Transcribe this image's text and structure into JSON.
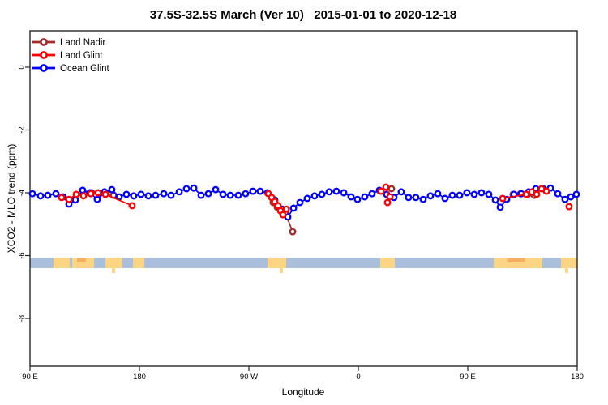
{
  "window": {
    "background": "#ffffff"
  },
  "chart_data": {
    "type": "line",
    "title": "37.5S-32.5S March (Ver 10)   2015-01-01 to 2020-12-18",
    "xlabel": "Longitude",
    "ylabel": "XCO2 - MLO trend (ppm)",
    "xlim_axis_degrees": [
      90,
      540
    ],
    "ylim": [
      -9.2,
      1.2
    ],
    "grid": false,
    "legend_position": "top-left",
    "x_ticks": [
      {
        "lon": 90,
        "label": "90 E"
      },
      {
        "lon": 180,
        "label": "180"
      },
      {
        "lon": 270,
        "label": "90 W"
      },
      {
        "lon": 360,
        "label": "0"
      },
      {
        "lon": 450,
        "label": "90 E"
      },
      {
        "lon": 540,
        "label": "180"
      }
    ],
    "y_ticks": [
      {
        "value": 0,
        "label": "0"
      },
      {
        "value": -2,
        "label": "-2"
      },
      {
        "value": -4,
        "label": "-4"
      },
      {
        "value": -6,
        "label": "-6"
      },
      {
        "value": -8,
        "label": "-8"
      }
    ],
    "series": [
      {
        "name": "Land Nadir",
        "color": "#A52A2A",
        "marker": "open-circle",
        "segments": [
          [
            [
              134.7,
              -4.03
            ],
            [
              140.7,
              -4.0
            ],
            [
              146.7,
              -4.05
            ],
            [
              152.7,
              -4.03
            ],
            [
              158.7,
              -4.08
            ]
          ],
          [
            [
              290.0,
              -4.31
            ],
            [
              293.3,
              -4.46
            ],
            [
              296.7,
              -4.59
            ],
            [
              300.0,
              -4.65
            ],
            [
              306.0,
              -5.24
            ]
          ],
          [
            [
              387.3,
              -3.87
            ]
          ],
          [
            [
              487.3,
              -4.05
            ],
            [
              493.3,
              -4.03
            ],
            [
              499.3,
              -4.05
            ],
            [
              504.7,
              -4.08
            ]
          ]
        ]
      },
      {
        "name": "Land Glint",
        "color": "#FF0000",
        "marker": "open-circle",
        "segments": [
          [
            [
              116.0,
              -4.15
            ],
            [
              122.0,
              -4.21
            ],
            [
              128.0,
              -4.05
            ],
            [
              134.0,
              -4.1
            ],
            [
              140.0,
              -4.03
            ],
            [
              146.0,
              -4.0
            ],
            [
              152.0,
              -4.05
            ],
            [
              174.0,
              -4.41
            ]
          ],
          [
            [
              286.0,
              -4.03
            ],
            [
              288.7,
              -4.15
            ],
            [
              291.3,
              -4.28
            ],
            [
              294.0,
              -4.41
            ],
            [
              296.0,
              -4.57
            ],
            [
              298.0,
              -4.7
            ],
            [
              300.7,
              -4.52
            ]
          ],
          [
            [
              378.7,
              -3.95
            ],
            [
              382.7,
              -3.82
            ],
            [
              386.0,
              -4.13
            ],
            [
              384.0,
              -4.31
            ]
          ],
          [
            [
              478.7,
              -4.18
            ],
            [
              498.0,
              -4.05
            ],
            [
              502.7,
              -3.97
            ],
            [
              506.7,
              -4.05
            ],
            [
              510.7,
              -3.87
            ],
            [
              514.7,
              -3.95
            ]
          ],
          [
            [
              533.3,
              -4.44
            ]
          ]
        ]
      },
      {
        "name": "Ocean Glint",
        "color": "#0000FF",
        "marker": "open-circle",
        "segments": [
          [
            [
              92.0,
              -4.03
            ],
            [
              98.7,
              -4.1
            ],
            [
              104.7,
              -4.08
            ],
            [
              111.3,
              -4.03
            ],
            [
              117.3,
              -4.13
            ],
            [
              122.0,
              -4.36
            ],
            [
              127.3,
              -4.23
            ],
            [
              133.3,
              -3.92
            ],
            [
              139.3,
              -4.0
            ],
            [
              145.3,
              -4.21
            ],
            [
              151.3,
              -3.97
            ],
            [
              157.3,
              -3.9
            ],
            [
              163.3,
              -4.13
            ],
            [
              169.3,
              -4.05
            ],
            [
              175.3,
              -4.1
            ],
            [
              181.3,
              -4.05
            ],
            [
              187.3,
              -4.1
            ],
            [
              193.3,
              -4.08
            ],
            [
              200.0,
              -4.03
            ],
            [
              206.0,
              -4.08
            ],
            [
              212.7,
              -3.97
            ],
            [
              218.7,
              -3.87
            ],
            [
              224.7,
              -3.85
            ],
            [
              230.7,
              -4.08
            ],
            [
              236.7,
              -4.03
            ],
            [
              242.7,
              -3.9
            ],
            [
              248.7,
              -4.05
            ],
            [
              254.7,
              -4.08
            ],
            [
              261.3,
              -4.08
            ],
            [
              267.3,
              -4.03
            ],
            [
              273.3,
              -3.95
            ],
            [
              279.3,
              -3.95
            ],
            [
              285.3,
              -4.0
            ],
            [
              291.3,
              -4.23
            ],
            [
              297.3,
              -4.52
            ],
            [
              302.0,
              -4.77
            ],
            [
              306.7,
              -4.49
            ],
            [
              312.0,
              -4.31
            ],
            [
              318.0,
              -4.18
            ],
            [
              324.0,
              -4.1
            ],
            [
              330.0,
              -4.05
            ],
            [
              336.0,
              -3.97
            ],
            [
              342.0,
              -3.95
            ],
            [
              348.0,
              -4.0
            ],
            [
              354.0,
              -4.13
            ],
            [
              359.3,
              -4.21
            ],
            [
              365.3,
              -4.13
            ],
            [
              371.3,
              -4.03
            ],
            [
              377.3,
              -3.92
            ],
            [
              383.3,
              -4.05
            ],
            [
              389.3,
              -4.15
            ],
            [
              395.3,
              -3.97
            ],
            [
              401.3,
              -4.15
            ],
            [
              407.3,
              -4.15
            ],
            [
              413.3,
              -4.21
            ],
            [
              419.3,
              -4.1
            ],
            [
              425.3,
              -4.03
            ],
            [
              431.3,
              -4.18
            ],
            [
              437.3,
              -4.08
            ],
            [
              443.3,
              -4.08
            ],
            [
              449.3,
              -4.0
            ],
            [
              455.3,
              -4.05
            ],
            [
              461.3,
              -4.0
            ],
            [
              467.3,
              -4.05
            ],
            [
              472.7,
              -4.23
            ],
            [
              476.7,
              -4.46
            ],
            [
              482.0,
              -4.21
            ],
            [
              488.0,
              -4.05
            ],
            [
              494.0,
              -4.03
            ],
            [
              500.0,
              -3.97
            ],
            [
              506.0,
              -3.87
            ],
            [
              512.0,
              -3.87
            ],
            [
              518.0,
              -3.85
            ],
            [
              524.0,
              -4.03
            ],
            [
              530.0,
              -4.21
            ],
            [
              534.7,
              -4.13
            ],
            [
              539.3,
              -4.05
            ]
          ]
        ]
      }
    ],
    "map_band": {
      "description": "land/ocean strip for latitude band 37.5S-32.5S drawn near y = -6",
      "ocean_color": "#A9BFDC",
      "land_color": "#FBD583",
      "dense_color": "#F2A85A",
      "lon_range": [
        90,
        540
      ],
      "land_patches": [
        {
          "start": 109.3,
          "end": 122.7
        },
        {
          "start": 124.7,
          "end": 142.7
        },
        {
          "start": 152.0,
          "end": 166.0
        },
        {
          "start": 174.7,
          "end": 184.0
        },
        {
          "start": 285.3,
          "end": 300.7
        },
        {
          "start": 378.0,
          "end": 390.0
        },
        {
          "start": 471.3,
          "end": 511.3
        },
        {
          "start": 526.7,
          "end": 540.0
        }
      ],
      "tails": [
        {
          "lon": 158.7
        },
        {
          "lon": 296.7
        },
        {
          "lon": 531.3
        }
      ],
      "dense_spots": [
        {
          "start": 128.7,
          "end": 136.0
        },
        {
          "start": 483.0,
          "end": 497.0
        }
      ]
    }
  }
}
